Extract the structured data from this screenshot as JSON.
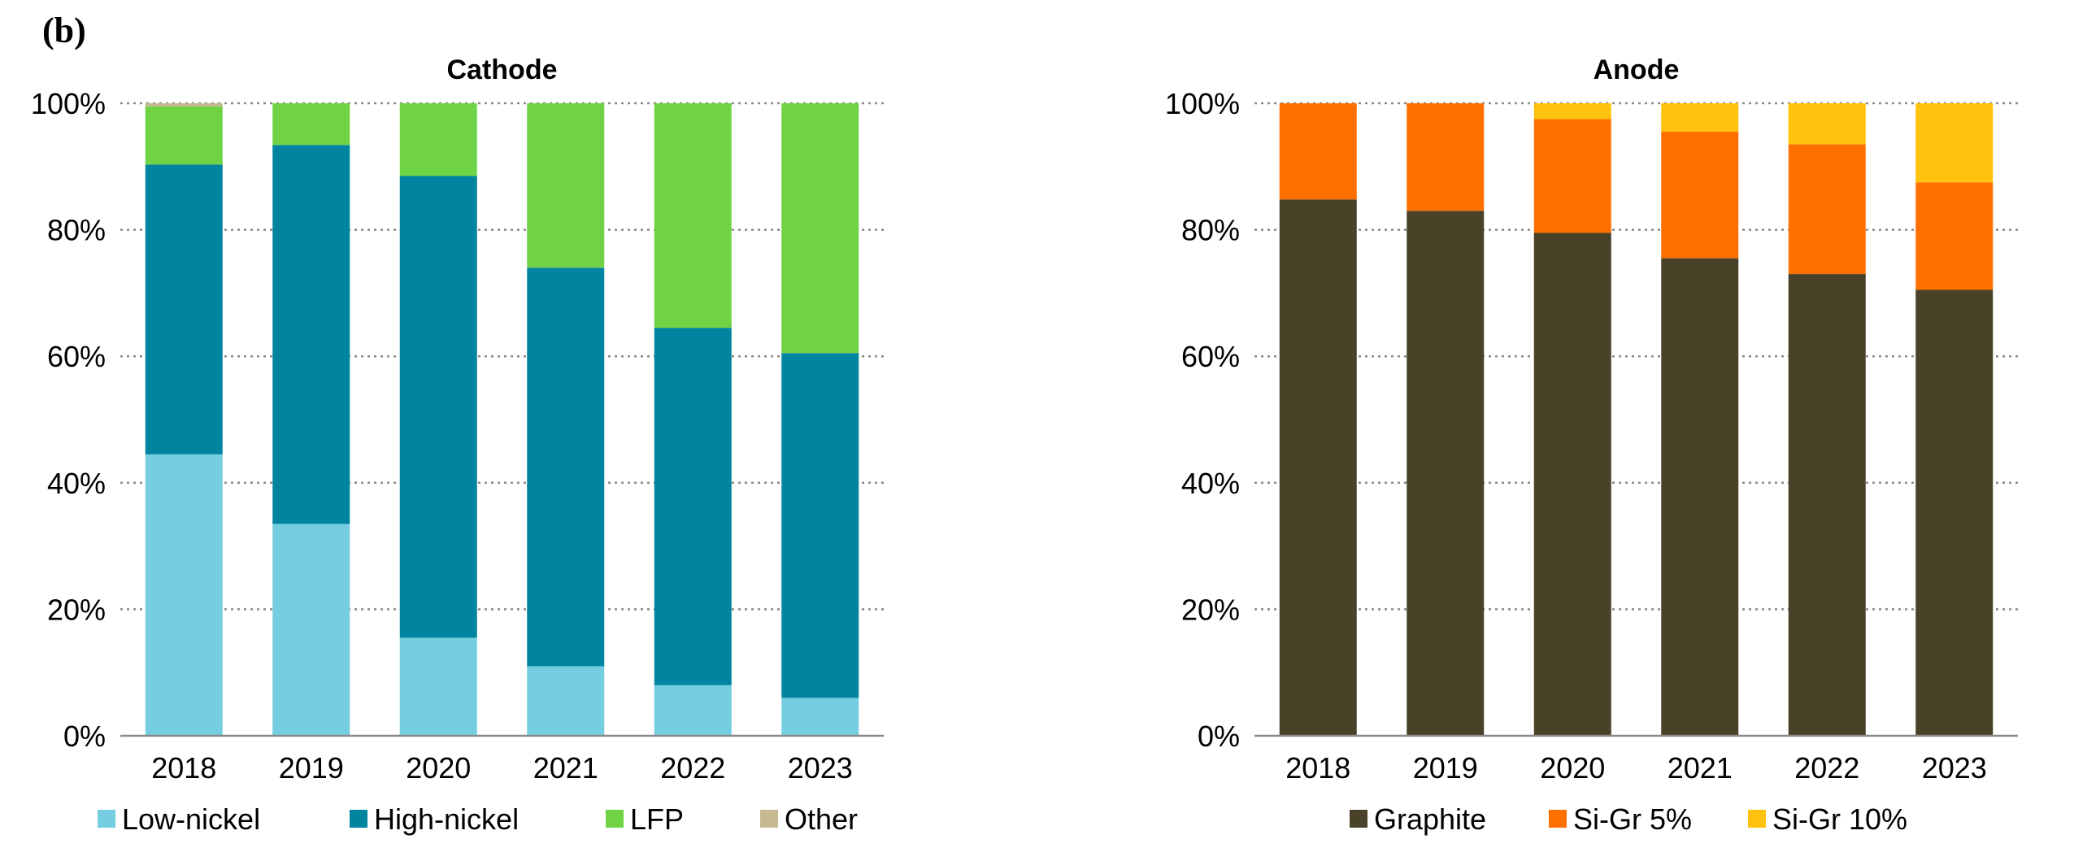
{
  "panel_label": "(b)",
  "chart_data": [
    {
      "type": "bar",
      "stacked": true,
      "title": "Cathode",
      "categories": [
        "2018",
        "2019",
        "2020",
        "2021",
        "2022",
        "2023"
      ],
      "series": [
        {
          "name": "Low-nickel",
          "color": "#74cde0",
          "values": [
            44.5,
            33.5,
            15.5,
            11,
            8,
            6
          ]
        },
        {
          "name": "High-nickel",
          "color": "#00849f",
          "values": [
            45.8,
            59.9,
            73,
            63,
            56.5,
            54.5
          ]
        },
        {
          "name": "LFP",
          "color": "#6fd345",
          "values": [
            9.2,
            6.6,
            11.5,
            26,
            35.5,
            39.5
          ]
        },
        {
          "name": "Other",
          "color": "#c5b991",
          "values": [
            0.5,
            0,
            0,
            0,
            0,
            0
          ]
        }
      ],
      "y_ticks": [
        "0%",
        "20%",
        "40%",
        "60%",
        "80%",
        "100%"
      ],
      "ylim": [
        0,
        100
      ],
      "grid": true,
      "legend": "bottom"
    },
    {
      "type": "bar",
      "stacked": true,
      "title": "Anode",
      "categories": [
        "2018",
        "2019",
        "2020",
        "2021",
        "2022",
        "2023"
      ],
      "series": [
        {
          "name": "Graphite",
          "color": "#4a4228",
          "values": [
            84.8,
            83,
            79.5,
            75.5,
            73,
            70.5
          ]
        },
        {
          "name": "Si-Gr 5%",
          "color": "#ff7000",
          "values": [
            15.2,
            17,
            18,
            20,
            20.5,
            17
          ]
        },
        {
          "name": "Si-Gr 10%",
          "color": "#ffc20e",
          "values": [
            0,
            0,
            2.5,
            4.5,
            6.5,
            12.5
          ]
        }
      ],
      "y_ticks": [
        "0%",
        "20%",
        "40%",
        "60%",
        "80%",
        "100%"
      ],
      "ylim": [
        0,
        100
      ],
      "grid": true,
      "legend": "bottom"
    }
  ]
}
